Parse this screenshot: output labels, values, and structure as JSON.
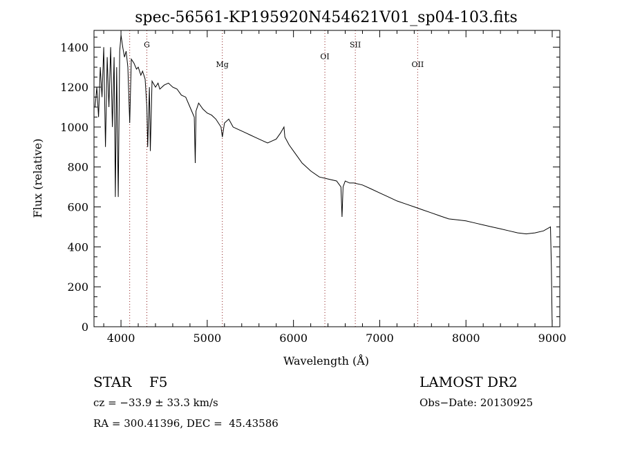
{
  "chart_data": {
    "type": "line",
    "title": "spec-56561-KP195920N454621V01_sp04-103.fits",
    "xlabel": "Wavelength (Å)",
    "ylabel": "Flux (relative)",
    "xlim": [
      3687,
      9088
    ],
    "ylim": [
      0,
      1484
    ],
    "xticks": [
      4000,
      5000,
      6000,
      7000,
      8000,
      9000
    ],
    "yticks": [
      0,
      200,
      400,
      600,
      800,
      1000,
      1200,
      1400
    ],
    "lines": [
      {
        "label": "",
        "x": 4101,
        "label_flux": null
      },
      {
        "label": "G",
        "x": 4300,
        "label_flux": 1400
      },
      {
        "label": "Mg",
        "x": 5175,
        "label_flux": 1300
      },
      {
        "label": "OI",
        "x": 6364,
        "label_flux": 1340
      },
      {
        "label": "SII",
        "x": 6717,
        "label_flux": 1400
      },
      {
        "label": "OII",
        "x": 7440,
        "label_flux": 1300
      }
    ],
    "line_color": "#8b1a1a",
    "spectrum": [
      [
        3700,
        1100
      ],
      [
        3720,
        1200
      ],
      [
        3740,
        1050
      ],
      [
        3760,
        1300
      ],
      [
        3780,
        1150
      ],
      [
        3800,
        1400
      ],
      [
        3820,
        900
      ],
      [
        3840,
        1350
      ],
      [
        3860,
        1100
      ],
      [
        3880,
        1400
      ],
      [
        3900,
        1000
      ],
      [
        3920,
        1350
      ],
      [
        3935,
        650
      ],
      [
        3950,
        1300
      ],
      [
        3968,
        650
      ],
      [
        3985,
        1380
      ],
      [
        4000,
        1460
      ],
      [
        4020,
        1400
      ],
      [
        4040,
        1350
      ],
      [
        4060,
        1380
      ],
      [
        4080,
        1300
      ],
      [
        4101,
        1020
      ],
      [
        4120,
        1340
      ],
      [
        4150,
        1320
      ],
      [
        4180,
        1290
      ],
      [
        4200,
        1300
      ],
      [
        4230,
        1260
      ],
      [
        4250,
        1280
      ],
      [
        4280,
        1240
      ],
      [
        4300,
        1100
      ],
      [
        4310,
        900
      ],
      [
        4330,
        1200
      ],
      [
        4340,
        880
      ],
      [
        4360,
        1230
      ],
      [
        4400,
        1200
      ],
      [
        4430,
        1220
      ],
      [
        4450,
        1190
      ],
      [
        4500,
        1210
      ],
      [
        4550,
        1220
      ],
      [
        4600,
        1200
      ],
      [
        4650,
        1190
      ],
      [
        4700,
        1160
      ],
      [
        4750,
        1150
      ],
      [
        4800,
        1100
      ],
      [
        4850,
        1050
      ],
      [
        4861,
        820
      ],
      [
        4870,
        1080
      ],
      [
        4900,
        1120
      ],
      [
        4950,
        1090
      ],
      [
        5000,
        1070
      ],
      [
        5050,
        1060
      ],
      [
        5100,
        1040
      ],
      [
        5160,
        1000
      ],
      [
        5175,
        950
      ],
      [
        5200,
        1020
      ],
      [
        5250,
        1040
      ],
      [
        5300,
        1000
      ],
      [
        5350,
        990
      ],
      [
        5400,
        980
      ],
      [
        5450,
        970
      ],
      [
        5500,
        960
      ],
      [
        5550,
        950
      ],
      [
        5600,
        940
      ],
      [
        5650,
        930
      ],
      [
        5700,
        920
      ],
      [
        5750,
        930
      ],
      [
        5800,
        940
      ],
      [
        5850,
        970
      ],
      [
        5890,
        1000
      ],
      [
        5900,
        950
      ],
      [
        5950,
        910
      ],
      [
        6000,
        880
      ],
      [
        6050,
        850
      ],
      [
        6100,
        820
      ],
      [
        6150,
        800
      ],
      [
        6200,
        780
      ],
      [
        6300,
        750
      ],
      [
        6400,
        740
      ],
      [
        6500,
        730
      ],
      [
        6550,
        700
      ],
      [
        6563,
        550
      ],
      [
        6575,
        700
      ],
      [
        6600,
        730
      ],
      [
        6650,
        720
      ],
      [
        6700,
        720
      ],
      [
        6800,
        710
      ],
      [
        6900,
        690
      ],
      [
        7000,
        670
      ],
      [
        7100,
        650
      ],
      [
        7200,
        630
      ],
      [
        7300,
        615
      ],
      [
        7400,
        600
      ],
      [
        7500,
        585
      ],
      [
        7600,
        570
      ],
      [
        7700,
        555
      ],
      [
        7800,
        540
      ],
      [
        7900,
        535
      ],
      [
        8000,
        530
      ],
      [
        8100,
        520
      ],
      [
        8200,
        510
      ],
      [
        8300,
        500
      ],
      [
        8400,
        490
      ],
      [
        8500,
        480
      ],
      [
        8600,
        470
      ],
      [
        8700,
        465
      ],
      [
        8800,
        470
      ],
      [
        8900,
        480
      ],
      [
        8980,
        500
      ],
      [
        8990,
        300
      ],
      [
        9000,
        0
      ]
    ]
  },
  "footer": {
    "object": "STAR    F5",
    "cz": "cz = −33.9 ± 33.3 km/s",
    "coords": "RA = 300.41396, DEC =  45.43586",
    "survey": "LAMOST DR2",
    "obs_date": "Obs−Date: 20130925"
  }
}
